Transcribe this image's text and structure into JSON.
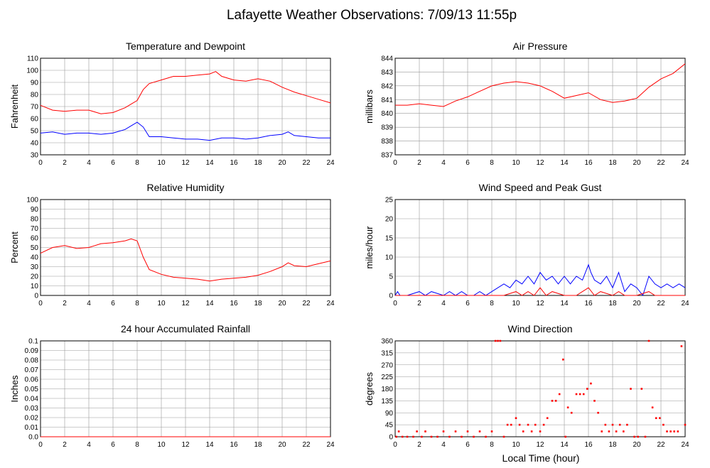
{
  "page": {
    "title": "Lafayette Weather Observations: 7/09/13 11:55p",
    "xlabel": "Local Time (hour)"
  },
  "colors": {
    "primary": "#ff0000",
    "secondary": "#0000ff",
    "grid": "#999999"
  },
  "chart_data": [
    {
      "id": "temp",
      "type": "line",
      "title": "Temperature and Dewpoint",
      "ylabel": "Fahrenheit",
      "xlabel": "",
      "xlim": [
        0,
        24
      ],
      "ylim": [
        30,
        110
      ],
      "xticks": [
        "0",
        "2",
        "4",
        "6",
        "8",
        "10",
        "12",
        "14",
        "16",
        "18",
        "20",
        "22",
        "24"
      ],
      "yticks": [
        "30",
        "40",
        "50",
        "60",
        "70",
        "80",
        "90",
        "100",
        "110"
      ],
      "series": [
        {
          "color": "#ff0000",
          "x": [
            0,
            1,
            2,
            3,
            4,
            5,
            6,
            7,
            7.5,
            8,
            8.5,
            9,
            10,
            11,
            12,
            13,
            14,
            14.5,
            15,
            16,
            17,
            18,
            19,
            20,
            21,
            22,
            23,
            24
          ],
          "y": [
            71,
            67,
            66,
            67,
            67,
            64,
            65,
            69,
            72,
            75,
            84,
            89,
            92,
            95,
            95,
            96,
            97,
            99,
            95,
            92,
            91,
            93,
            91,
            86,
            82,
            79,
            76,
            73
          ]
        },
        {
          "color": "#0000ff",
          "x": [
            0,
            1,
            2,
            3,
            4,
            5,
            6,
            7,
            7.5,
            8,
            8.5,
            9,
            10,
            11,
            12,
            13,
            14,
            15,
            16,
            17,
            18,
            19,
            20,
            20.5,
            21,
            22,
            23,
            24
          ],
          "y": [
            48,
            49,
            47,
            48,
            48,
            47,
            48,
            51,
            54,
            57,
            53,
            45,
            45,
            44,
            43,
            43,
            42,
            44,
            44,
            43,
            44,
            46,
            47,
            49,
            46,
            45,
            44,
            44
          ]
        }
      ]
    },
    {
      "id": "pressure",
      "type": "line",
      "title": "Air Pressure",
      "ylabel": "millibars",
      "xlabel": "",
      "xlim": [
        0,
        24
      ],
      "ylim": [
        837,
        844
      ],
      "xticks": [
        "0",
        "2",
        "4",
        "6",
        "8",
        "10",
        "12",
        "14",
        "16",
        "18",
        "20",
        "22",
        "24"
      ],
      "yticks": [
        "837",
        "838",
        "839",
        "840",
        "841",
        "842",
        "843",
        "844"
      ],
      "series": [
        {
          "color": "#ff0000",
          "x": [
            0,
            1,
            2,
            3,
            4,
            5,
            6,
            7,
            8,
            9,
            10,
            11,
            12,
            13,
            14,
            15,
            16,
            17,
            18,
            19,
            20,
            21,
            22,
            23,
            24
          ],
          "y": [
            840.6,
            840.6,
            840.7,
            840.6,
            840.5,
            840.9,
            841.2,
            841.6,
            842,
            842.2,
            842.3,
            842.2,
            842,
            841.6,
            841.1,
            841.3,
            841.5,
            841,
            840.8,
            840.9,
            841.1,
            841.9,
            842.5,
            842.9,
            843.6
          ]
        }
      ]
    },
    {
      "id": "humidity",
      "type": "line",
      "title": "Relative Humidity",
      "ylabel": "Percent",
      "xlabel": "",
      "xlim": [
        0,
        24
      ],
      "ylim": [
        0,
        100
      ],
      "xticks": [
        "0",
        "2",
        "4",
        "6",
        "8",
        "10",
        "12",
        "14",
        "16",
        "18",
        "20",
        "22",
        "24"
      ],
      "yticks": [
        "0",
        "10",
        "20",
        "30",
        "40",
        "50",
        "60",
        "70",
        "80",
        "90",
        "100"
      ],
      "series": [
        {
          "color": "#ff0000",
          "x": [
            0,
            1,
            2,
            3,
            4,
            5,
            6,
            7,
            7.5,
            8,
            8.5,
            9,
            10,
            11,
            12,
            13,
            14,
            15,
            16,
            17,
            18,
            19,
            20,
            20.5,
            21,
            22,
            23,
            24
          ],
          "y": [
            44,
            50,
            52,
            49,
            50,
            54,
            55,
            57,
            59,
            57,
            40,
            27,
            22,
            19,
            18,
            17,
            15,
            17,
            18,
            19,
            21,
            25,
            30,
            34,
            31,
            30,
            33,
            36
          ]
        }
      ]
    },
    {
      "id": "wind",
      "type": "line",
      "title": "Wind Speed and Peak Gust",
      "ylabel": "miles/hour",
      "xlabel": "",
      "xlim": [
        0,
        24
      ],
      "ylim": [
        0,
        25
      ],
      "xticks": [
        "0",
        "2",
        "4",
        "6",
        "8",
        "10",
        "12",
        "14",
        "16",
        "18",
        "20",
        "22",
        "24"
      ],
      "yticks": [
        "0",
        "5",
        "10",
        "15",
        "20",
        "25"
      ],
      "series": [
        {
          "color": "#0000ff",
          "x": [
            0,
            0.2,
            0.4,
            1,
            2,
            2.5,
            3,
            4,
            4.5,
            5,
            5.5,
            6,
            6.5,
            7,
            7.5,
            8,
            8.5,
            9,
            9.5,
            10,
            10.5,
            11,
            11.5,
            12,
            12.5,
            13,
            13.5,
            14,
            14.5,
            15,
            15.5,
            16,
            16.2,
            16.5,
            17,
            17.5,
            18,
            18.5,
            19,
            19.5,
            20,
            20.5,
            21,
            21.5,
            22,
            22.5,
            23,
            23.5,
            24
          ],
          "y": [
            0,
            1,
            0,
            0,
            1,
            0,
            1,
            0,
            1,
            0,
            1,
            0,
            0,
            1,
            0,
            1,
            2,
            3,
            2,
            4,
            3,
            5,
            3,
            6,
            4,
            5,
            3,
            5,
            3,
            5,
            4,
            8,
            6,
            4,
            3,
            5,
            2,
            6,
            1,
            3,
            2,
            0,
            5,
            3,
            2,
            3,
            2,
            3,
            2
          ]
        },
        {
          "color": "#ff0000",
          "x": [
            0,
            8,
            9,
            10,
            10.5,
            11,
            11.5,
            12,
            12.5,
            13,
            14,
            15,
            15.5,
            16,
            16.5,
            17,
            18,
            18.5,
            19,
            20,
            21,
            21.5,
            22,
            24
          ],
          "y": [
            0,
            0,
            0,
            1,
            0,
            1,
            0,
            2,
            0,
            1,
            0,
            0,
            1,
            2,
            0,
            1,
            0,
            1,
            0,
            0,
            1,
            0,
            0,
            0
          ]
        }
      ]
    },
    {
      "id": "rain",
      "type": "line",
      "title": "24 hour Accumulated Rainfall",
      "ylabel": "Inches",
      "xlabel": "",
      "xlim": [
        0,
        24
      ],
      "ylim": [
        0,
        0.1
      ],
      "xticks": [
        "0",
        "2",
        "4",
        "6",
        "8",
        "10",
        "12",
        "14",
        "16",
        "18",
        "20",
        "22",
        "24"
      ],
      "yticks": [
        "0.0",
        "0.01",
        "0.02",
        "0.03",
        "0.04",
        "0.05",
        "0.06",
        "0.07",
        "0.08",
        "0.09",
        "0.1"
      ],
      "series": [
        {
          "color": "#ff0000",
          "x": [
            0,
            24
          ],
          "y": [
            0,
            0
          ]
        }
      ]
    },
    {
      "id": "direction",
      "type": "scatter",
      "title": "Wind Direction",
      "ylabel": "degrees",
      "xlabel": "",
      "xlim": [
        0,
        24
      ],
      "ylim": [
        0,
        360
      ],
      "xticks": [
        "0",
        "2",
        "4",
        "6",
        "8",
        "10",
        "12",
        "14",
        "16",
        "18",
        "20",
        "22",
        "24"
      ],
      "yticks": [
        "0",
        "45",
        "90",
        "135",
        "180",
        "225",
        "270",
        "315",
        "360"
      ],
      "series": [
        {
          "color": "#ff0000",
          "x": [
            0.1,
            0.3,
            0.6,
            1,
            1.5,
            1.8,
            2.2,
            2.5,
            3,
            3.5,
            4,
            4.5,
            5,
            5.5,
            6,
            6.5,
            7,
            7.5,
            8,
            8.3,
            8.5,
            8.7,
            9,
            9.3,
            9.6,
            10,
            10.3,
            10.6,
            11,
            11.3,
            11.6,
            12,
            12.3,
            12.6,
            13,
            13.3,
            13.6,
            13.9,
            14.1,
            14.3,
            14.6,
            15,
            15.3,
            15.6,
            15.9,
            16.2,
            16.5,
            16.8,
            17.1,
            17.4,
            17.7,
            18,
            18.3,
            18.6,
            18.9,
            19.2,
            19.5,
            19.8,
            20.1,
            20.4,
            20.7,
            21,
            21.3,
            21.6,
            21.9,
            22.2,
            22.5,
            22.8,
            23.1,
            23.4,
            23.7,
            24
          ],
          "y": [
            0,
            20,
            0,
            0,
            0,
            20,
            0,
            20,
            0,
            0,
            20,
            0,
            20,
            0,
            20,
            0,
            20,
            0,
            20,
            360,
            360,
            360,
            0,
            45,
            45,
            70,
            45,
            20,
            45,
            20,
            45,
            20,
            45,
            70,
            135,
            135,
            160,
            290,
            0,
            110,
            90,
            160,
            160,
            160,
            180,
            200,
            135,
            90,
            20,
            45,
            20,
            45,
            20,
            45,
            20,
            45,
            180,
            0,
            0,
            180,
            0,
            360,
            110,
            70,
            70,
            45,
            20,
            20,
            20,
            20,
            340,
            45
          ]
        }
      ]
    }
  ]
}
